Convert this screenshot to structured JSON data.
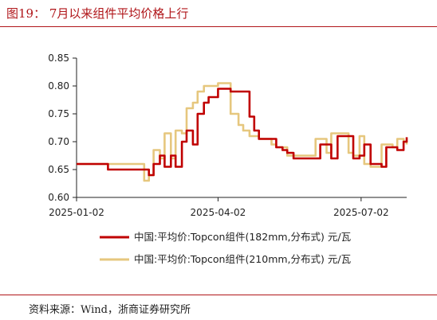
{
  "header": {
    "title": "图19：  7月以来组件平均价格上行"
  },
  "footer": {
    "source": "资料来源：Wind，浙商证券研究所"
  },
  "colors": {
    "series_1": "#c00000",
    "series_2": "#e6c77e",
    "accent": "#b0161a"
  },
  "chart_data": {
    "type": "line",
    "title": "",
    "xlabel": "",
    "ylabel": "",
    "ylim": [
      0.6,
      0.85
    ],
    "yticks": [
      0.6,
      0.65,
      0.7,
      0.75,
      0.8,
      0.85
    ],
    "x_range": [
      "2025-01-02",
      "2025-07-31"
    ],
    "xticks": [
      "2025-01-02",
      "2025-04-02",
      "2025-07-02"
    ],
    "grid": false,
    "legend": "bottom",
    "series": [
      {
        "name": "中国:平均价:Topcon组件(182mm,分布式) 元/瓦",
        "x": [
          "2025-01-02",
          "2025-01-15",
          "2025-01-22",
          "2025-02-05",
          "2025-02-12",
          "2025-02-17",
          "2025-02-20",
          "2025-02-24",
          "2025-02-27",
          "2025-03-03",
          "2025-03-06",
          "2025-03-10",
          "2025-03-13",
          "2025-03-17",
          "2025-03-20",
          "2025-03-24",
          "2025-03-27",
          "2025-04-02",
          "2025-04-08",
          "2025-04-10",
          "2025-04-15",
          "2025-04-18",
          "2025-04-22",
          "2025-04-25",
          "2025-04-28",
          "2025-05-06",
          "2025-05-09",
          "2025-05-13",
          "2025-05-16",
          "2025-05-20",
          "2025-05-23",
          "2025-05-27",
          "2025-06-03",
          "2025-06-06",
          "2025-06-10",
          "2025-06-13",
          "2025-06-17",
          "2025-06-20",
          "2025-06-24",
          "2025-06-27",
          "2025-07-01",
          "2025-07-04",
          "2025-07-08",
          "2025-07-11",
          "2025-07-15",
          "2025-07-18",
          "2025-07-22",
          "2025-07-25",
          "2025-07-29",
          "2025-07-31"
        ],
        "values": [
          0.66,
          0.66,
          0.65,
          0.65,
          0.65,
          0.64,
          0.66,
          0.675,
          0.655,
          0.675,
          0.655,
          0.7,
          0.72,
          0.695,
          0.75,
          0.77,
          0.78,
          0.795,
          0.795,
          0.79,
          0.79,
          0.79,
          0.745,
          0.72,
          0.705,
          0.705,
          0.69,
          0.685,
          0.68,
          0.67,
          0.67,
          0.67,
          0.67,
          0.695,
          0.695,
          0.67,
          0.71,
          0.71,
          0.71,
          0.67,
          0.675,
          0.695,
          0.66,
          0.66,
          0.655,
          0.69,
          0.69,
          0.685,
          0.7,
          0.708
        ]
      },
      {
        "name": "中国:平均价:Topcon组件(210mm,分布式) 元/瓦",
        "x": [
          "2025-01-02",
          "2025-01-15",
          "2025-01-22",
          "2025-02-05",
          "2025-02-12",
          "2025-02-14",
          "2025-02-17",
          "2025-02-20",
          "2025-02-24",
          "2025-02-27",
          "2025-03-03",
          "2025-03-06",
          "2025-03-10",
          "2025-03-13",
          "2025-03-17",
          "2025-03-20",
          "2025-03-24",
          "2025-03-27",
          "2025-04-02",
          "2025-04-08",
          "2025-04-10",
          "2025-04-15",
          "2025-04-18",
          "2025-04-22",
          "2025-04-25",
          "2025-04-28",
          "2025-05-06",
          "2025-05-09",
          "2025-05-13",
          "2025-05-16",
          "2025-05-20",
          "2025-05-23",
          "2025-05-27",
          "2025-06-03",
          "2025-06-06",
          "2025-06-10",
          "2025-06-13",
          "2025-06-17",
          "2025-06-20",
          "2025-06-24",
          "2025-06-27",
          "2025-07-01",
          "2025-07-04",
          "2025-07-08",
          "2025-07-11",
          "2025-07-15",
          "2025-07-18",
          "2025-07-22",
          "2025-07-25",
          "2025-07-29",
          "2025-07-31"
        ],
        "values": [
          0.66,
          0.66,
          0.66,
          0.66,
          0.66,
          0.63,
          0.64,
          0.685,
          0.67,
          0.715,
          0.67,
          0.72,
          0.715,
          0.76,
          0.77,
          0.79,
          0.8,
          0.8,
          0.805,
          0.805,
          0.75,
          0.73,
          0.72,
          0.71,
          0.71,
          0.705,
          0.695,
          0.69,
          0.69,
          0.675,
          0.675,
          0.675,
          0.675,
          0.705,
          0.705,
          0.68,
          0.715,
          0.715,
          0.715,
          0.68,
          0.675,
          0.71,
          0.66,
          0.655,
          0.655,
          0.695,
          0.695,
          0.69,
          0.705,
          0.7,
          0.695
        ]
      }
    ]
  }
}
